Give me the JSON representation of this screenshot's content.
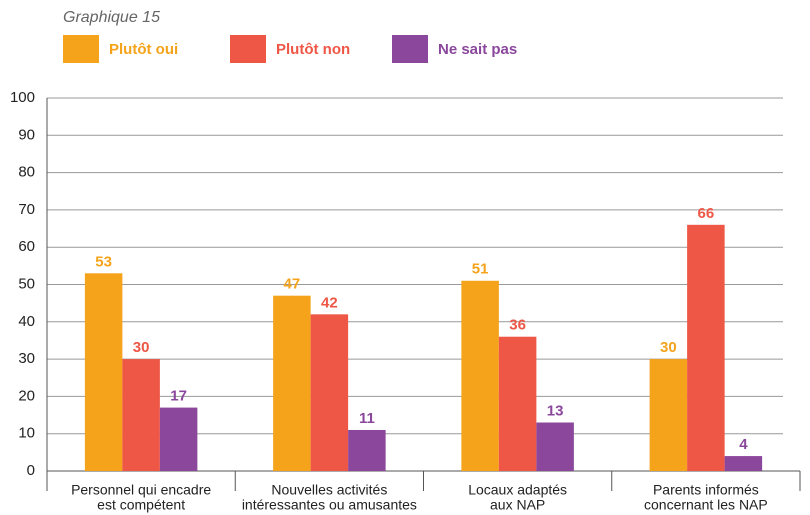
{
  "chart_data": {
    "type": "bar",
    "title": "Graphique 15",
    "categories": [
      [
        "Personnel qui encadre",
        "est compétent"
      ],
      [
        "Nouvelles activités",
        "intéressantes ou amusantes"
      ],
      [
        "Locaux adaptés",
        "aux NAP"
      ],
      [
        "Parents informés",
        "concernant les NAP"
      ]
    ],
    "series": [
      {
        "name": "Plutôt oui",
        "color": "#f5a31b",
        "values": [
          53,
          47,
          51,
          30
        ]
      },
      {
        "name": "Plutôt non",
        "color": "#ee5645",
        "values": [
          30,
          42,
          36,
          66
        ]
      },
      {
        "name": "Ne sait pas",
        "color": "#8a479b",
        "values": [
          17,
          11,
          13,
          4
        ]
      }
    ],
    "ylim": [
      0,
      100
    ],
    "yticks": [
      0,
      10,
      20,
      30,
      40,
      50,
      60,
      70,
      80,
      90,
      100
    ],
    "grid": true
  }
}
